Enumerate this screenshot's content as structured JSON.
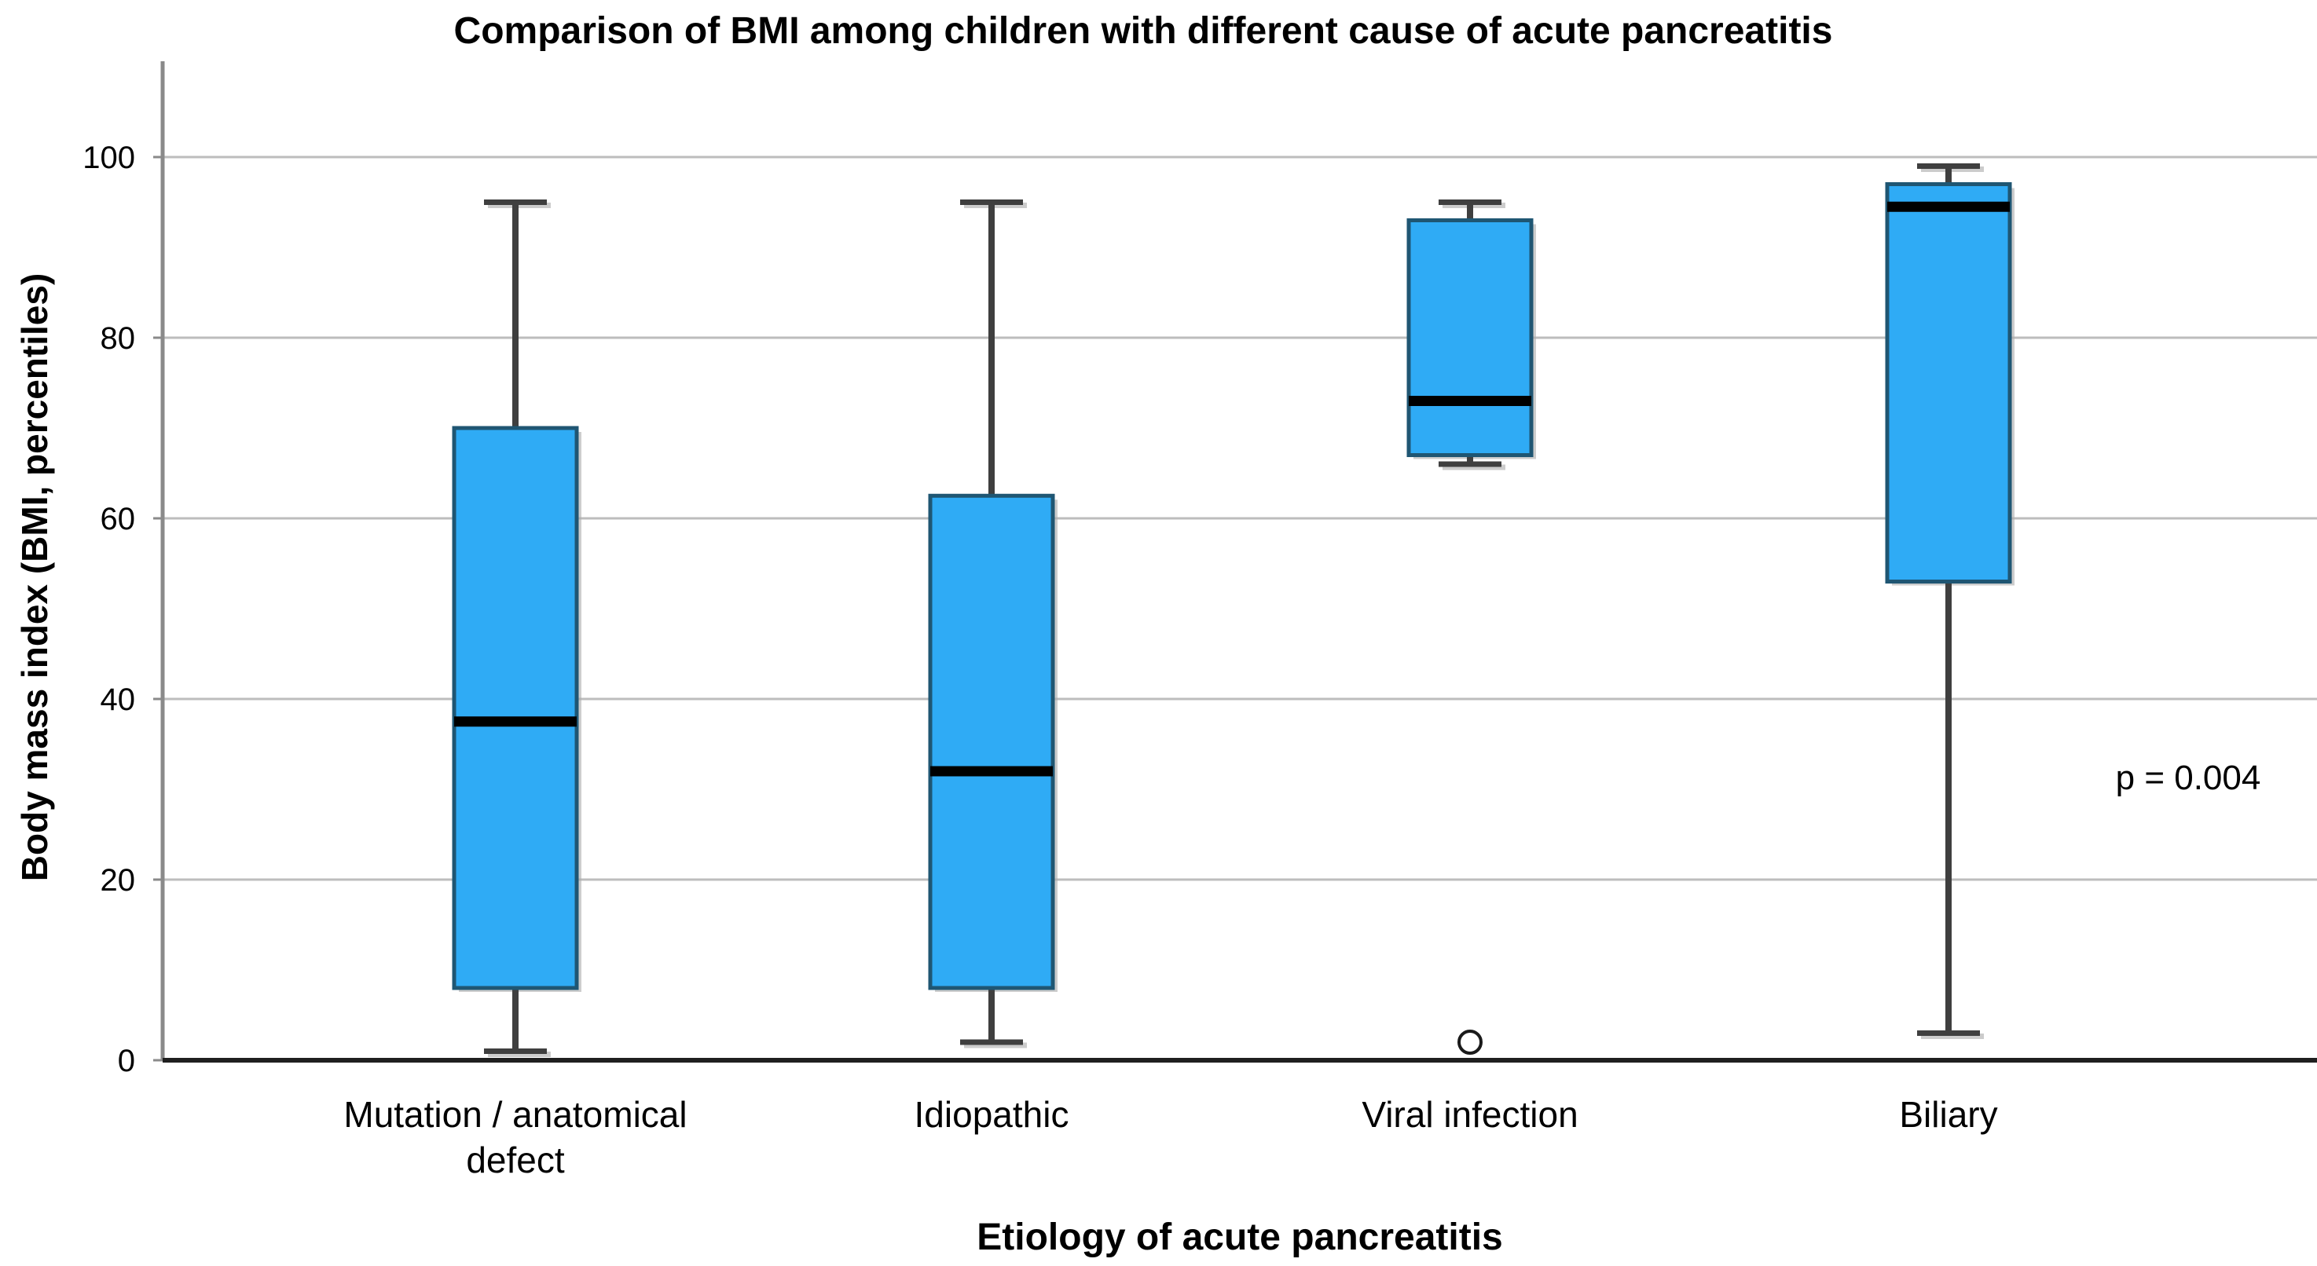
{
  "chart": {
    "title": "Comparison of BMI among children with different cause of acute pancreatitis",
    "x_axis_label": "Etiology of acute pancreatitis",
    "y_axis_label": "Body mass index (BMI, percentiles)",
    "annotation": "p = 0.004"
  },
  "chart_data": {
    "type": "box",
    "title": "Comparison of BMI among children with different cause of acute pancreatitis",
    "xlabel": "Etiology of acute pancreatitis",
    "ylabel": "Body mass index (BMI, percentiles)",
    "ylim": [
      0,
      110
    ],
    "yticks": [
      0,
      20,
      40,
      60,
      80,
      100
    ],
    "grid": "horizontal",
    "legend": "none",
    "categories": [
      "Mutation / anatomical defect",
      "Idiopathic",
      "Viral infection",
      "Biliary"
    ],
    "category_label_lines": [
      [
        "Mutation / anatomical",
        "defect"
      ],
      [
        "Idiopathic"
      ],
      [
        "Viral infection"
      ],
      [
        "Biliary"
      ]
    ],
    "series": [
      {
        "name": "Mutation / anatomical defect",
        "whisker_low": 1,
        "q1": 8,
        "median": 37.5,
        "q3": 70,
        "whisker_high": 95,
        "outliers": []
      },
      {
        "name": "Idiopathic",
        "whisker_low": 2,
        "q1": 8,
        "median": 32,
        "q3": 62.5,
        "whisker_high": 95,
        "outliers": []
      },
      {
        "name": "Viral infection",
        "whisker_low": 66,
        "q1": 67,
        "median": 73,
        "q3": 93,
        "whisker_high": 95,
        "outliers": [
          2
        ]
      },
      {
        "name": "Biliary",
        "whisker_low": 3,
        "q1": 53,
        "median": 94.5,
        "q3": 97,
        "whisker_high": 99,
        "outliers": []
      }
    ],
    "annotation": {
      "text": "p = 0.004",
      "y_value": 30
    },
    "colors": {
      "box_fill": "#2FABF5",
      "box_stroke": "#1F5673",
      "median": "#000000",
      "whisker": "#3F3F3F",
      "grid": "#BDBDBD",
      "y_axis": "#8A8A8A",
      "x_axis": "#1F1F1F",
      "shadow": "#ABABAB",
      "text": "#000000"
    }
  }
}
